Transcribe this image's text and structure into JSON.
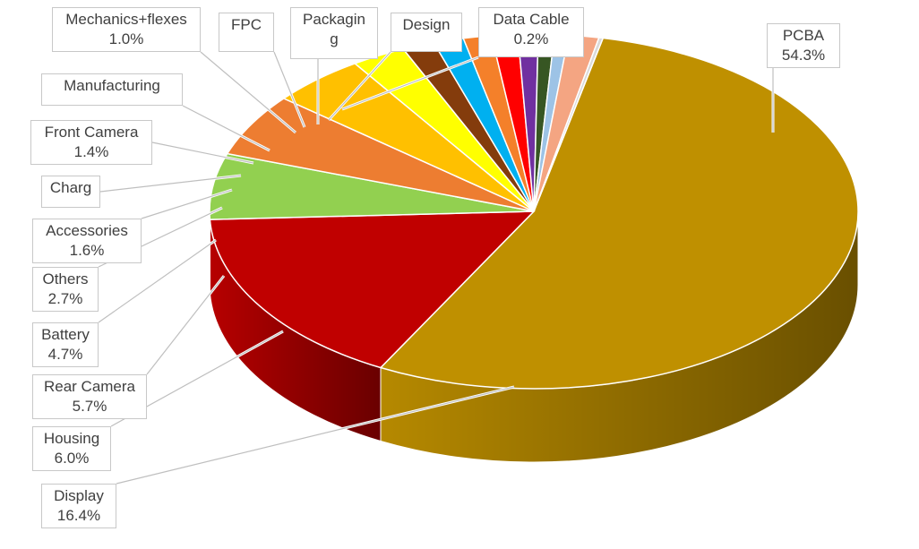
{
  "chart_data": {
    "type": "pie",
    "style": "3d",
    "slices": [
      {
        "name": "PCBA",
        "label": "PCBA",
        "value_text": "54.3%",
        "value": 54.3,
        "color": "#BF9000"
      },
      {
        "name": "Display",
        "label": "Display",
        "value_text": "16.4%",
        "value": 16.4,
        "color": "#C00000"
      },
      {
        "name": "Housing",
        "label": "Housing",
        "value_text": "6.0%",
        "value": 6.0,
        "color": "#92D050"
      },
      {
        "name": "Rear Camera",
        "label": "Rear Camera",
        "value_text": "5.7%",
        "value": 5.7,
        "color": "#ED7D31"
      },
      {
        "name": "Battery",
        "label": "Battery",
        "value_text": "4.7%",
        "value": 4.7,
        "color": "#FFC000"
      },
      {
        "name": "Others",
        "label": "Others",
        "value_text": "2.7%",
        "value": 2.7,
        "color": "#FFFF00"
      },
      {
        "name": "Accessories",
        "label": "Accessories",
        "value_text": "1.6%",
        "value": 1.6,
        "color": "#843C0C"
      },
      {
        "name": "Charg",
        "label": "Charg",
        "value_text": "",
        "value": 1.5,
        "color": "#00B0F0"
      },
      {
        "name": "Front Camera",
        "label": "Front Camera",
        "value_text": "1.4%",
        "value": 1.4,
        "color": "#F4802A"
      },
      {
        "name": "Manufacturing",
        "label": "Manufacturing",
        "value_text": "",
        "value": 1.3,
        "color": "#FF0000"
      },
      {
        "name": "Mechanics+flexes",
        "label": "Mechanics+flexes",
        "value_text": "1.0%",
        "value": 1.0,
        "color": "#7030A0"
      },
      {
        "name": "FPC",
        "label": "FPC",
        "value_text": "",
        "value": 0.8,
        "color": "#375623"
      },
      {
        "name": "Packaging",
        "label": "Packagin\ng",
        "value_text": "",
        "value": 0.7,
        "color": "#9DC3E6"
      },
      {
        "name": "Design",
        "label": "Design",
        "value_text": "",
        "value": 1.5,
        "color": "#F4A582"
      },
      {
        "name": "Data Cable",
        "label": "Data Cable",
        "value_text": "0.2%",
        "value": 0.2,
        "color": "#D9D9D9"
      }
    ]
  }
}
